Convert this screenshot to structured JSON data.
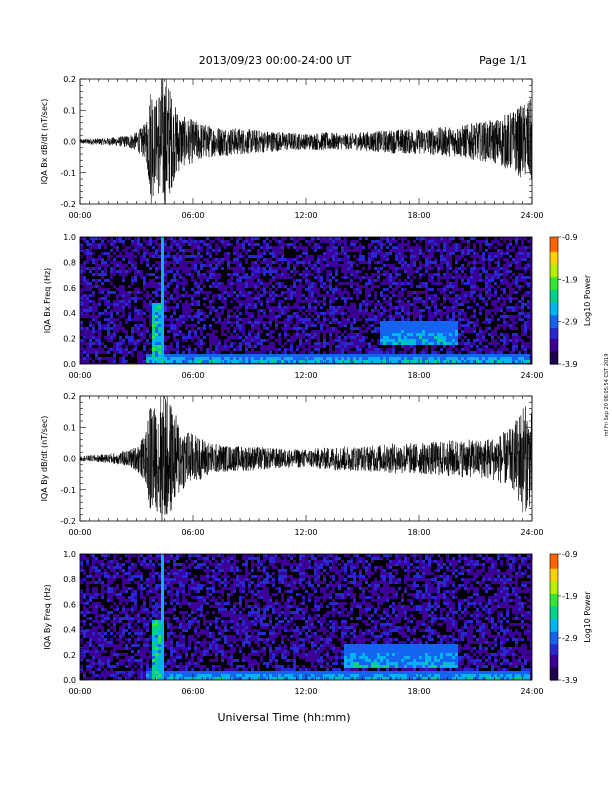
{
  "header": {
    "title": "2013/09/23  00:00-24:00 UT",
    "page": "Page 1/1"
  },
  "side_note": "rnf Fri Sep 20 08:05:54 CST 2019",
  "xaxis_label": "Universal Time (hh:mm)",
  "colors": {
    "spec_bg": "#3c0096",
    "trace": "#000000"
  },
  "chart_data": [
    {
      "type": "line",
      "title": "",
      "ylabel": "IQA Bx dB/dt (nT/sec)",
      "xlabel": "",
      "x_ticks": [
        "00:00",
        "06:00",
        "12:00",
        "18:00",
        "24:00"
      ],
      "y_ticks": [
        "0.2",
        "0.1",
        "0.0",
        "-0.1",
        "-0.2"
      ],
      "xlim_hours": [
        0,
        24
      ],
      "ylim": [
        -0.2,
        0.2
      ],
      "series": [
        {
          "values": [
            [
              0,
              0.008
            ],
            [
              0.5,
              0.01
            ],
            [
              1,
              0.01
            ],
            [
              1.5,
              0.012
            ],
            [
              2,
              0.015
            ],
            [
              2.5,
              0.02
            ],
            [
              3,
              0.03
            ],
            [
              3.5,
              0.06
            ],
            [
              3.8,
              0.22
            ],
            [
              4.0,
              0.12
            ],
            [
              4.3,
              0.22
            ],
            [
              4.6,
              0.22
            ],
            [
              5.0,
              0.12
            ],
            [
              5.5,
              0.08
            ],
            [
              6,
              0.07
            ],
            [
              7,
              0.05
            ],
            [
              8,
              0.045
            ],
            [
              9,
              0.04
            ],
            [
              10,
              0.035
            ],
            [
              11,
              0.03
            ],
            [
              12,
              0.025
            ],
            [
              13,
              0.03
            ],
            [
              14,
              0.025
            ],
            [
              15,
              0.03
            ],
            [
              16,
              0.035
            ],
            [
              17,
              0.04
            ],
            [
              18,
              0.04
            ],
            [
              19,
              0.045
            ],
            [
              20,
              0.05
            ],
            [
              21,
              0.06
            ],
            [
              22,
              0.07
            ],
            [
              23,
              0.1
            ],
            [
              23.5,
              0.12
            ],
            [
              24,
              0.14
            ]
          ]
        }
      ]
    },
    {
      "type": "heatmap",
      "title": "",
      "ylabel": "IQA Bx Freq (Hz)",
      "xlabel": "",
      "x_ticks": [
        "00:00",
        "06:00",
        "12:00",
        "18:00",
        "24:00"
      ],
      "y_ticks": [
        "1.0",
        "0.8",
        "0.6",
        "0.4",
        "0.2",
        "0.0"
      ],
      "ylim": [
        0,
        1.0
      ],
      "colorbar": {
        "label": "Log10 Power",
        "ticks": [
          "-0.9",
          "-1.9",
          "-2.9",
          "-3.9"
        ],
        "range": [
          -3.9,
          -0.9
        ]
      },
      "bands": [
        {
          "name": "low-frequency",
          "x_hours": [
            3.5,
            24
          ],
          "y_hz": [
            0,
            0.08
          ]
        },
        {
          "name": "Pc1",
          "x_hours": [
            16,
            20
          ],
          "y_hz": [
            0.15,
            0.35
          ]
        }
      ]
    },
    {
      "type": "line",
      "title": "",
      "ylabel": "IQA By dB/dt (nT/sec)",
      "xlabel": "",
      "x_ticks": [
        "00:00",
        "06:00",
        "12:00",
        "18:00",
        "24:00"
      ],
      "y_ticks": [
        "0.2",
        "0.1",
        "0.0",
        "-0.1",
        "-0.2"
      ],
      "xlim_hours": [
        0,
        24
      ],
      "ylim": [
        -0.2,
        0.2
      ],
      "series": [
        {
          "values": [
            [
              0,
              0.008
            ],
            [
              0.5,
              0.01
            ],
            [
              1,
              0.012
            ],
            [
              1.5,
              0.015
            ],
            [
              2,
              0.02
            ],
            [
              2.5,
              0.025
            ],
            [
              3,
              0.04
            ],
            [
              3.5,
              0.08
            ],
            [
              3.8,
              0.22
            ],
            [
              4.0,
              0.15
            ],
            [
              4.3,
              0.22
            ],
            [
              4.6,
              0.22
            ],
            [
              5.0,
              0.15
            ],
            [
              5.5,
              0.1
            ],
            [
              6,
              0.08
            ],
            [
              7,
              0.05
            ],
            [
              8,
              0.04
            ],
            [
              9,
              0.04
            ],
            [
              10,
              0.035
            ],
            [
              11,
              0.03
            ],
            [
              12,
              0.03
            ],
            [
              13,
              0.035
            ],
            [
              14,
              0.04
            ],
            [
              15,
              0.04
            ],
            [
              16,
              0.045
            ],
            [
              17,
              0.05
            ],
            [
              18,
              0.05
            ],
            [
              19,
              0.055
            ],
            [
              20,
              0.06
            ],
            [
              21,
              0.06
            ],
            [
              22,
              0.07
            ],
            [
              23,
              0.1
            ],
            [
              23.5,
              0.18
            ],
            [
              24,
              0.15
            ]
          ]
        }
      ]
    },
    {
      "type": "heatmap",
      "title": "",
      "ylabel": "IQA By Freq (Hz)",
      "xlabel": "",
      "x_ticks": [
        "00:00",
        "06:00",
        "12:00",
        "18:00",
        "24:00"
      ],
      "y_ticks": [
        "1.0",
        "0.8",
        "0.6",
        "0.4",
        "0.2",
        "0.0"
      ],
      "ylim": [
        0,
        1.0
      ],
      "colorbar": {
        "label": "Log10 Power",
        "ticks": [
          "-0.9",
          "-1.9",
          "-2.9",
          "-3.9"
        ],
        "range": [
          -3.9,
          -0.9
        ]
      },
      "bands": [
        {
          "name": "low-frequency",
          "x_hours": [
            3.5,
            24
          ],
          "y_hz": [
            0,
            0.08
          ]
        },
        {
          "name": "Pc1",
          "x_hours": [
            14,
            20
          ],
          "y_hz": [
            0.1,
            0.3
          ]
        }
      ]
    }
  ]
}
